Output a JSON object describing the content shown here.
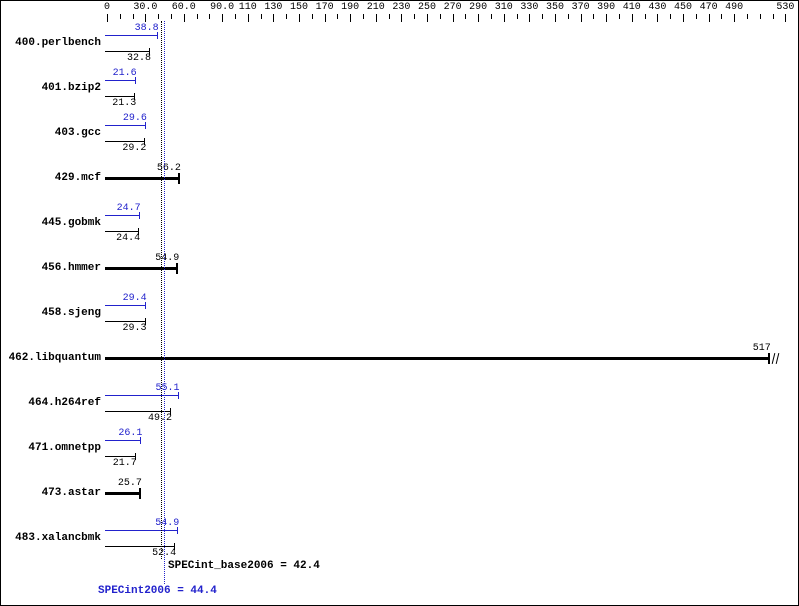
{
  "colors": {
    "peak": "#2222cc",
    "base": "#000000",
    "background": "#ffffff",
    "border": "#000000"
  },
  "footer": {
    "base_label": "SPECint_base2006 = 42.4",
    "peak_label": "SPECint2006 = 44.4"
  },
  "chart_data": {
    "type": "bar",
    "orientation": "horizontal",
    "xlim": [
      0,
      530
    ],
    "minor_tick_step": 10,
    "grid": false,
    "legend": "none",
    "axis_ticks": [
      {
        "value": 0,
        "label": "0"
      },
      {
        "value": 30,
        "label": "30.0"
      },
      {
        "value": 60,
        "label": "60.0"
      },
      {
        "value": 90,
        "label": "90.0"
      },
      {
        "value": 110,
        "label": "110"
      },
      {
        "value": 130,
        "label": "130"
      },
      {
        "value": 150,
        "label": "150"
      },
      {
        "value": 170,
        "label": "170"
      },
      {
        "value": 190,
        "label": "190"
      },
      {
        "value": 210,
        "label": "210"
      },
      {
        "value": 230,
        "label": "230"
      },
      {
        "value": 250,
        "label": "250"
      },
      {
        "value": 270,
        "label": "270"
      },
      {
        "value": 290,
        "label": "290"
      },
      {
        "value": 310,
        "label": "310"
      },
      {
        "value": 330,
        "label": "330"
      },
      {
        "value": 350,
        "label": "350"
      },
      {
        "value": 370,
        "label": "370"
      },
      {
        "value": 390,
        "label": "390"
      },
      {
        "value": 410,
        "label": "410"
      },
      {
        "value": 430,
        "label": "430"
      },
      {
        "value": 450,
        "label": "450"
      },
      {
        "value": 470,
        "label": "470"
      },
      {
        "value": 490,
        "label": "490"
      },
      {
        "value": 530,
        "label": "530"
      }
    ],
    "categories": [
      "400.perlbench",
      "401.bzip2",
      "403.gcc",
      "429.mcf",
      "445.gobmk",
      "456.hmmer",
      "458.sjeng",
      "462.libquantum",
      "464.h264ref",
      "471.omnetpp",
      "473.astar",
      "483.xalancbmk"
    ],
    "series": [
      {
        "name": "SPECint2006 (peak)",
        "color": "#2222cc",
        "values": [
          38.8,
          21.6,
          29.6,
          56.2,
          24.7,
          54.9,
          29.4,
          517,
          55.1,
          26.1,
          25.7,
          54.9
        ]
      },
      {
        "name": "SPECint_base2006 (base)",
        "color": "#000000",
        "values": [
          32.8,
          21.3,
          29.2,
          56.2,
          24.4,
          54.9,
          29.3,
          517,
          49.2,
          21.7,
          25.7,
          52.4
        ]
      }
    ],
    "rows": [
      {
        "label": "400.perlbench",
        "single": false,
        "peak_text": "38.8",
        "base_text": "32.8"
      },
      {
        "label": "401.bzip2",
        "single": false,
        "peak_text": "21.6",
        "base_text": "21.3"
      },
      {
        "label": "403.gcc",
        "single": false,
        "peak_text": "29.6",
        "base_text": "29.2"
      },
      {
        "label": "429.mcf",
        "single": true,
        "value_text": "56.2"
      },
      {
        "label": "445.gobmk",
        "single": false,
        "peak_text": "24.7",
        "base_text": "24.4"
      },
      {
        "label": "456.hmmer",
        "single": true,
        "value_text": "54.9"
      },
      {
        "label": "458.sjeng",
        "single": false,
        "peak_text": "29.4",
        "base_text": "29.3"
      },
      {
        "label": "462.libquantum",
        "single": true,
        "value_text": "517",
        "clipped": true
      },
      {
        "label": "464.h264ref",
        "single": false,
        "peak_text": "55.1",
        "base_text": "49.2"
      },
      {
        "label": "471.omnetpp",
        "single": false,
        "peak_text": "26.1",
        "base_text": "21.7"
      },
      {
        "label": "473.astar",
        "single": true,
        "value_text": "25.7"
      },
      {
        "label": "483.xalancbmk",
        "single": false,
        "peak_text": "54.9",
        "base_text": "52.4"
      }
    ],
    "reference_lines": [
      {
        "value": 42.4,
        "color": "#000000",
        "style": "dotted",
        "label": "SPECint_base2006 = 42.4"
      },
      {
        "value": 44.4,
        "color": "#2222cc",
        "style": "dotted",
        "label": "SPECint2006 = 44.4"
      }
    ]
  }
}
